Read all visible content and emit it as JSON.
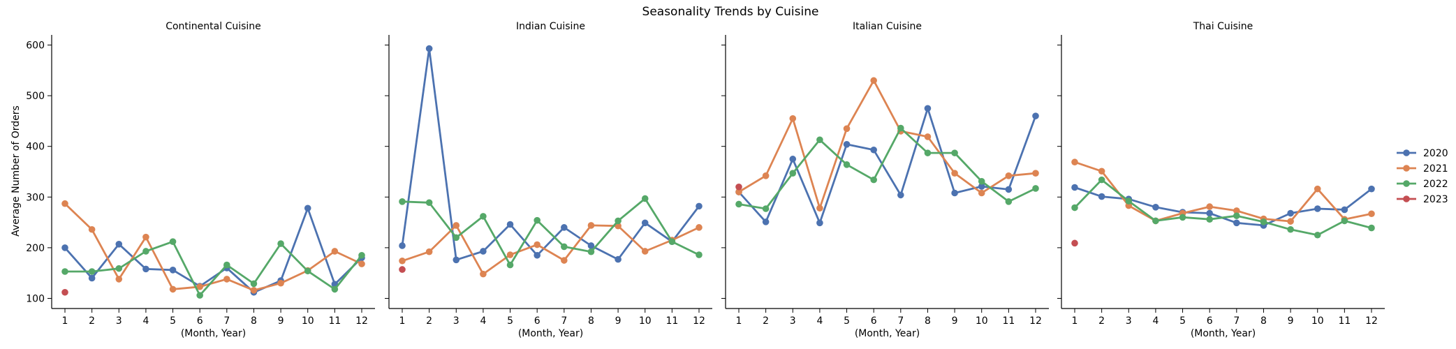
{
  "chart_data": {
    "type": "line",
    "title": "Seasonality Trends by Cuisine",
    "xlabel": "(Month, Year)",
    "ylabel": "Average Number of Orders",
    "x": [
      1,
      2,
      3,
      4,
      5,
      6,
      7,
      8,
      9,
      10,
      11,
      12
    ],
    "ylim": [
      80,
      620
    ],
    "yticks": [
      100,
      200,
      300,
      400,
      500,
      600
    ],
    "legend_position": "right",
    "grid": false,
    "colors": {
      "2020": "#4c72b0",
      "2021": "#dd8452",
      "2022": "#55a868",
      "2023": "#c44e52"
    },
    "legend": [
      "2020",
      "2021",
      "2022",
      "2023"
    ],
    "facets": [
      {
        "title": "Continental Cuisine",
        "series": [
          {
            "name": "2020",
            "values": [
              200,
              140,
              207,
              158,
              156,
              124,
              160,
              112,
              135,
              278,
              128,
              180
            ]
          },
          {
            "name": "2021",
            "values": [
              287,
              236,
              138,
              221,
              118,
              123,
              138,
              116,
              130,
              155,
              193,
              168
            ]
          },
          {
            "name": "2022",
            "values": [
              153,
              153,
              159,
              193,
              212,
              106,
              166,
              129,
              208,
              154,
              118,
              185
            ]
          },
          {
            "name": "2023",
            "values": [
              112,
              null,
              null,
              null,
              null,
              null,
              null,
              null,
              null,
              null,
              null,
              null
            ]
          }
        ]
      },
      {
        "title": "Indian Cuisine",
        "series": [
          {
            "name": "2020",
            "values": [
              204,
              593,
              176,
              193,
              246,
              185,
              240,
              204,
              177,
              249,
              212,
              282
            ]
          },
          {
            "name": "2021",
            "values": [
              174,
              192,
              244,
              148,
              186,
              206,
              175,
              244,
              243,
              193,
              215,
              240
            ]
          },
          {
            "name": "2022",
            "values": [
              291,
              289,
              220,
              262,
              166,
              254,
              202,
              192,
              253,
              297,
              212,
              186
            ]
          },
          {
            "name": "2023",
            "values": [
              157,
              null,
              null,
              null,
              null,
              null,
              null,
              null,
              null,
              null,
              null,
              null
            ]
          }
        ]
      },
      {
        "title": "Italian Cuisine",
        "series": [
          {
            "name": "2020",
            "values": [
              310,
              251,
              375,
              249,
              404,
              393,
              304,
              475,
              308,
              321,
              315,
              460
            ]
          },
          {
            "name": "2021",
            "values": [
              310,
              342,
              455,
              278,
              435,
              530,
              430,
              419,
              347,
              308,
              342,
              347
            ]
          },
          {
            "name": "2022",
            "values": [
              286,
              277,
              347,
              413,
              364,
              334,
              436,
              387,
              387,
              331,
              291,
              317
            ]
          },
          {
            "name": "2023",
            "values": [
              320,
              null,
              null,
              null,
              null,
              null,
              null,
              null,
              null,
              null,
              null,
              null
            ]
          }
        ]
      },
      {
        "title": "Thai Cuisine",
        "series": [
          {
            "name": "2020",
            "values": [
              319,
              301,
              296,
              280,
              270,
              268,
              249,
              244,
              268,
              277,
              275,
              316
            ]
          },
          {
            "name": "2021",
            "values": [
              369,
              351,
              283,
              253,
              268,
              281,
              273,
              257,
              252,
              316,
              256,
              267
            ]
          },
          {
            "name": "2022",
            "values": [
              279,
              334,
              292,
              253,
              260,
              256,
              263,
              251,
              236,
              225,
              253,
              239
            ]
          },
          {
            "name": "2023",
            "values": [
              209,
              null,
              null,
              null,
              null,
              null,
              null,
              null,
              null,
              null,
              null,
              null
            ]
          }
        ]
      }
    ]
  }
}
